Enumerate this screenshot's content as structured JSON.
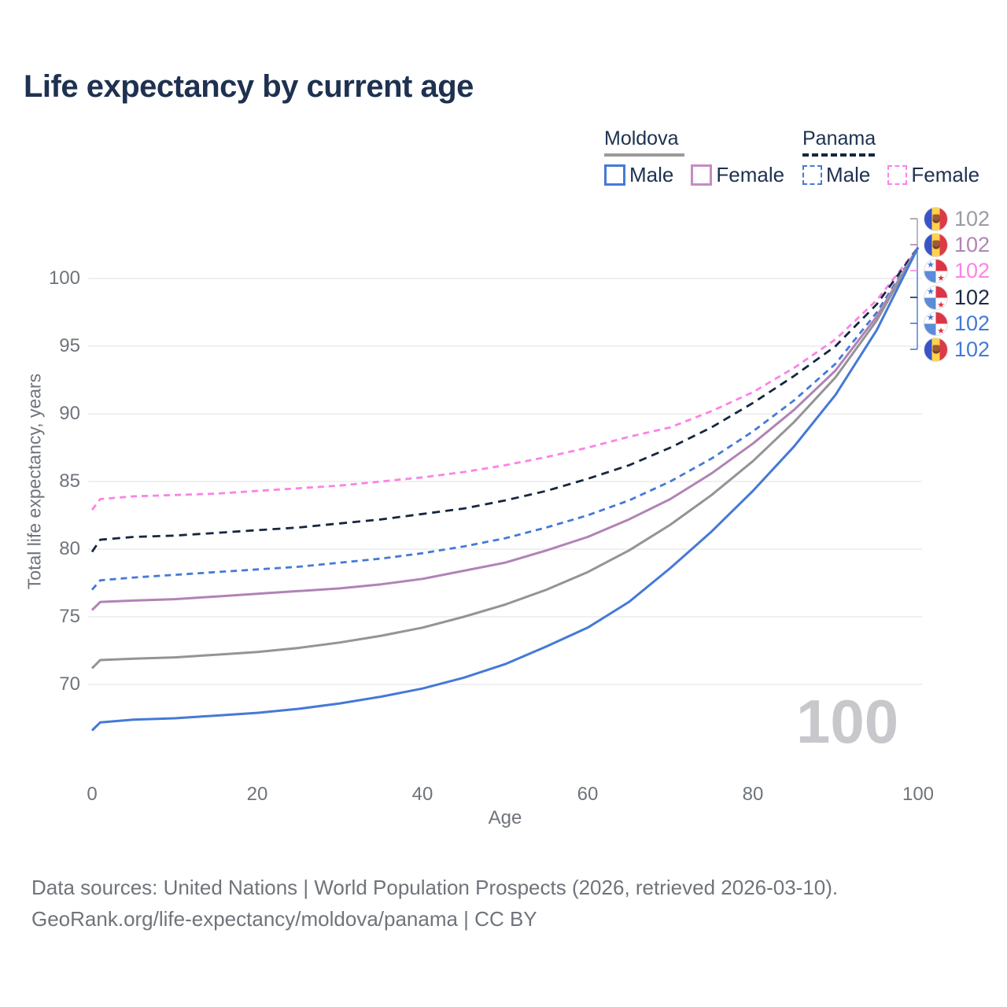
{
  "title": "Life expectancy by current age",
  "legend": {
    "groups": [
      {
        "label": "Moldova",
        "line_style": "solid",
        "color": "#9b9b9b",
        "items": [
          {
            "label": "Male",
            "color": "#4579d7"
          },
          {
            "label": "Female",
            "color": "#c78ac3"
          }
        ]
      },
      {
        "label": "Panama",
        "line_style": "dashed",
        "color": "#16263f",
        "items": [
          {
            "label": "Male",
            "color": "#4579d7"
          },
          {
            "label": "Female",
            "color": "#fb83e5"
          }
        ]
      }
    ]
  },
  "chart_data": {
    "type": "line",
    "title": "Life expectancy by current age",
    "xlabel": "Age",
    "ylabel": "Total life expectancy, years",
    "xlim": [
      0,
      100
    ],
    "ylim": [
      65.5,
      103
    ],
    "xticks": [
      0,
      20,
      40,
      60,
      80,
      100
    ],
    "yticks": [
      70,
      75,
      80,
      85,
      90,
      95,
      100
    ],
    "grid": true,
    "legend_position": "top-right",
    "x": [
      0,
      1,
      5,
      10,
      15,
      20,
      25,
      30,
      35,
      40,
      45,
      50,
      55,
      60,
      65,
      70,
      75,
      80,
      85,
      90,
      95,
      100
    ],
    "series": [
      {
        "name": "Panama Female",
        "country": "Panama",
        "sex": "Female",
        "color": "#fb83e5",
        "line_style": "dashed",
        "dash_pattern": "8 6",
        "values": [
          82.9,
          83.7,
          83.9,
          84.0,
          84.1,
          84.3,
          84.5,
          84.7,
          85.0,
          85.3,
          85.7,
          86.2,
          86.8,
          87.5,
          88.3,
          89.0,
          90.2,
          91.6,
          93.4,
          95.5,
          98.4,
          102.3
        ]
      },
      {
        "name": "Panama (both sexes)",
        "country": "Panama",
        "sex": "Both",
        "color": "#16263f",
        "line_style": "dashed",
        "dash_pattern": "10 7",
        "values": [
          79.8,
          80.7,
          80.9,
          81.0,
          81.2,
          81.4,
          81.6,
          81.9,
          82.2,
          82.6,
          83.0,
          83.6,
          84.3,
          85.2,
          86.2,
          87.5,
          89.0,
          90.8,
          92.8,
          95.0,
          98.1,
          102.3
        ]
      },
      {
        "name": "Panama Male",
        "country": "Panama",
        "sex": "Male",
        "color": "#4579d7",
        "line_style": "dashed",
        "dash_pattern": "8 6",
        "values": [
          77.0,
          77.7,
          77.9,
          78.1,
          78.3,
          78.5,
          78.7,
          79.0,
          79.3,
          79.7,
          80.2,
          80.8,
          81.6,
          82.5,
          83.6,
          85.0,
          86.7,
          88.7,
          91.0,
          93.7,
          97.5,
          102.3
        ]
      },
      {
        "name": "Moldova Female",
        "country": "Moldova",
        "sex": "Female",
        "color": "#b183b6",
        "line_style": "solid",
        "dash_pattern": null,
        "values": [
          75.5,
          76.1,
          76.2,
          76.3,
          76.5,
          76.7,
          76.9,
          77.1,
          77.4,
          77.8,
          78.4,
          79.0,
          79.9,
          80.9,
          82.2,
          83.7,
          85.6,
          87.8,
          90.3,
          93.2,
          97.2,
          102.3
        ]
      },
      {
        "name": "Moldova (both sexes)",
        "country": "Moldova",
        "sex": "Both",
        "color": "#949494",
        "line_style": "solid",
        "dash_pattern": null,
        "values": [
          71.2,
          71.8,
          71.9,
          72.0,
          72.2,
          72.4,
          72.7,
          73.1,
          73.6,
          74.2,
          75.0,
          75.9,
          77.0,
          78.3,
          79.9,
          81.8,
          84.0,
          86.5,
          89.4,
          92.7,
          96.9,
          102.3
        ]
      },
      {
        "name": "Moldova Male",
        "country": "Moldova",
        "sex": "Male",
        "color": "#4579d7",
        "line_style": "solid",
        "dash_pattern": null,
        "values": [
          66.6,
          67.2,
          67.4,
          67.5,
          67.7,
          67.9,
          68.2,
          68.6,
          69.1,
          69.7,
          70.5,
          71.5,
          72.8,
          74.2,
          76.1,
          78.6,
          81.3,
          84.3,
          87.6,
          91.4,
          96.2,
          102.3
        ]
      }
    ]
  },
  "end_labels": [
    {
      "country": "Moldova",
      "series": "Moldova (both sexes)",
      "value": "102",
      "color": "#9b9ba1"
    },
    {
      "country": "Moldova",
      "series": "Moldova Female",
      "value": "102",
      "color": "#b183b6"
    },
    {
      "country": "Panama",
      "series": "Panama Female",
      "value": "102",
      "color": "#fb84e6"
    },
    {
      "country": "Panama",
      "series": "Panama (both sexes)",
      "value": "102",
      "color": "#1c2b45"
    },
    {
      "country": "Panama",
      "series": "Panama Male",
      "value": "102",
      "color": "#4579d7"
    },
    {
      "country": "Moldova",
      "series": "Moldova Male",
      "value": "102",
      "color": "#4579d7"
    }
  ],
  "age_indicator": "100",
  "footer": {
    "line1": "Data sources: United Nations | World Population Prospects (2026, retrieved 2026-03-10).",
    "line2": "GeoRank.org/life-expectancy/moldova/panama | CC BY"
  }
}
